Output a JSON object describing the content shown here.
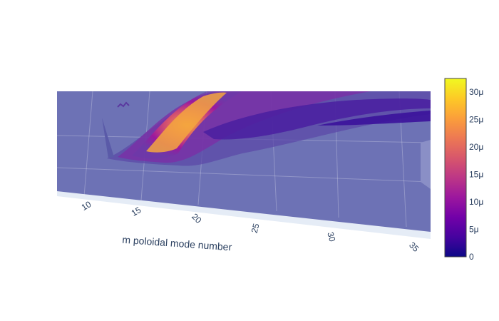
{
  "chart_data": {
    "type": "surface",
    "title": "",
    "xlabel": "m poloidal mode number",
    "ylabel": "",
    "zlabel": "",
    "x_ticks": [
      "10",
      "15",
      "20",
      "25",
      "30",
      "35"
    ],
    "colorbar": {
      "ticks": [
        "0",
        "5μ",
        "10μ",
        "15μ",
        "20μ",
        "25μ",
        "30μ"
      ],
      "values": [
        0,
        5e-06,
        1e-05,
        1.5e-05,
        2e-05,
        2.5e-05,
        3e-05
      ],
      "range": [
        0,
        3.25e-05
      ],
      "colorscale": [
        "#0d0887",
        "#46039f",
        "#7201a8",
        "#9c179e",
        "#bd3786",
        "#d8576b",
        "#ed7953",
        "#fb9f3a",
        "#fdca26",
        "#f0f921"
      ]
    },
    "scene_colors": {
      "surface_base": "#6a6fb3",
      "floor": "#e5ecf6"
    }
  }
}
